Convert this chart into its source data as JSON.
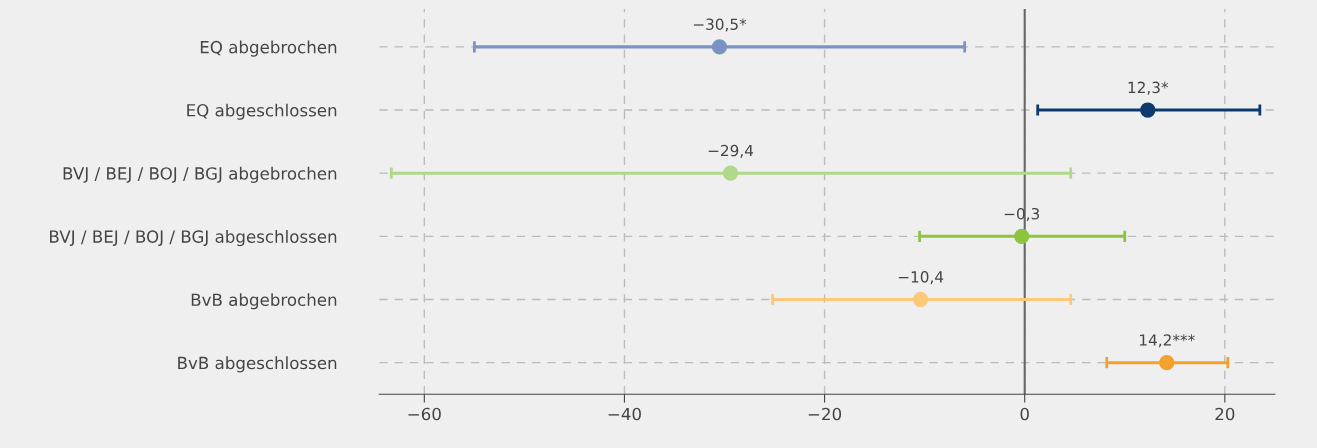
{
  "chart_data": {
    "type": "scatter",
    "orientation": "horizontal",
    "categories": [
      "EQ abgebrochen",
      "EQ abgeschlossen",
      "BVJ / BEJ / BOJ / BGJ abgebrochen",
      "BVJ / BEJ / BOJ / BGJ abgeschlossen",
      "BvB abgebrochen",
      "BvB abgeschlossen"
    ],
    "values": [
      -30.5,
      12.3,
      -29.4,
      -0.3,
      -10.4,
      14.2
    ],
    "errors": [
      [
        -55.0,
        -6.0
      ],
      [
        1.3,
        23.5
      ],
      [
        -63.3,
        4.6
      ],
      [
        -10.5,
        10.0
      ],
      [
        -25.2,
        4.6
      ],
      [
        8.2,
        20.3
      ]
    ],
    "value_labels": [
      "−30,5*",
      "12,3*",
      "−29,4",
      "−0,3",
      "−10,4",
      "14,2***"
    ],
    "colors": [
      "#7b93c4",
      "#0d3a6e",
      "#b0d88a",
      "#8cc43f",
      "#fcc97a",
      "#f5a12e"
    ],
    "xlim": [
      -64.5,
      25
    ],
    "xticks": [
      {
        "value": -60,
        "label": "−60"
      },
      {
        "value": -40,
        "label": "−40"
      },
      {
        "value": -20,
        "label": "−20"
      },
      0,
      20
    ],
    "ref_lines": [
      {
        "axis": "x",
        "value": 0,
        "color": "#666666",
        "line_style": "solid"
      }
    ],
    "grid": true,
    "marker": "circle"
  }
}
